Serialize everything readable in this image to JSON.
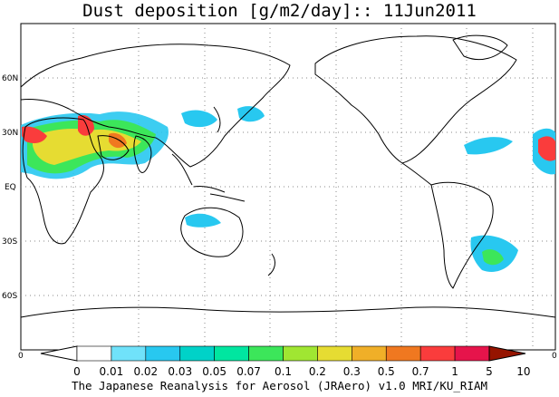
{
  "title": "Dust deposition [g/m2/day]:: 11Jun2011",
  "footer": "The Japanese Reanalysis for Aerosol (JRAero) v1.0 MRI/KU_RIAM",
  "map": {
    "lat_ticks": [
      "60N",
      "30N",
      "EQ",
      "30S",
      "60S"
    ],
    "lon_tick_left": "0",
    "lon_tick_right": "0",
    "gridlines": "dotted"
  },
  "colorbar": {
    "labels": [
      "0",
      "0.01",
      "0.02",
      "0.03",
      "0.05",
      "0.07",
      "0.1",
      "0.2",
      "0.3",
      "0.5",
      "0.7",
      "1",
      "5",
      "10"
    ],
    "colors": [
      "#ffffff",
      "#70e2fa",
      "#28c8f0",
      "#00d2c8",
      "#00e6a0",
      "#3ce65a",
      "#a0e632",
      "#e6dc32",
      "#f0af28",
      "#f07820",
      "#fa3c3c",
      "#e6144b",
      "#c0002a",
      "#961400"
    ]
  },
  "colors": {
    "land": "#ffffff",
    "coast": "#000000",
    "low_dust": "#28c8f0",
    "mid_dust": "#3ce65a",
    "high_dust": "#fa3c3c"
  }
}
